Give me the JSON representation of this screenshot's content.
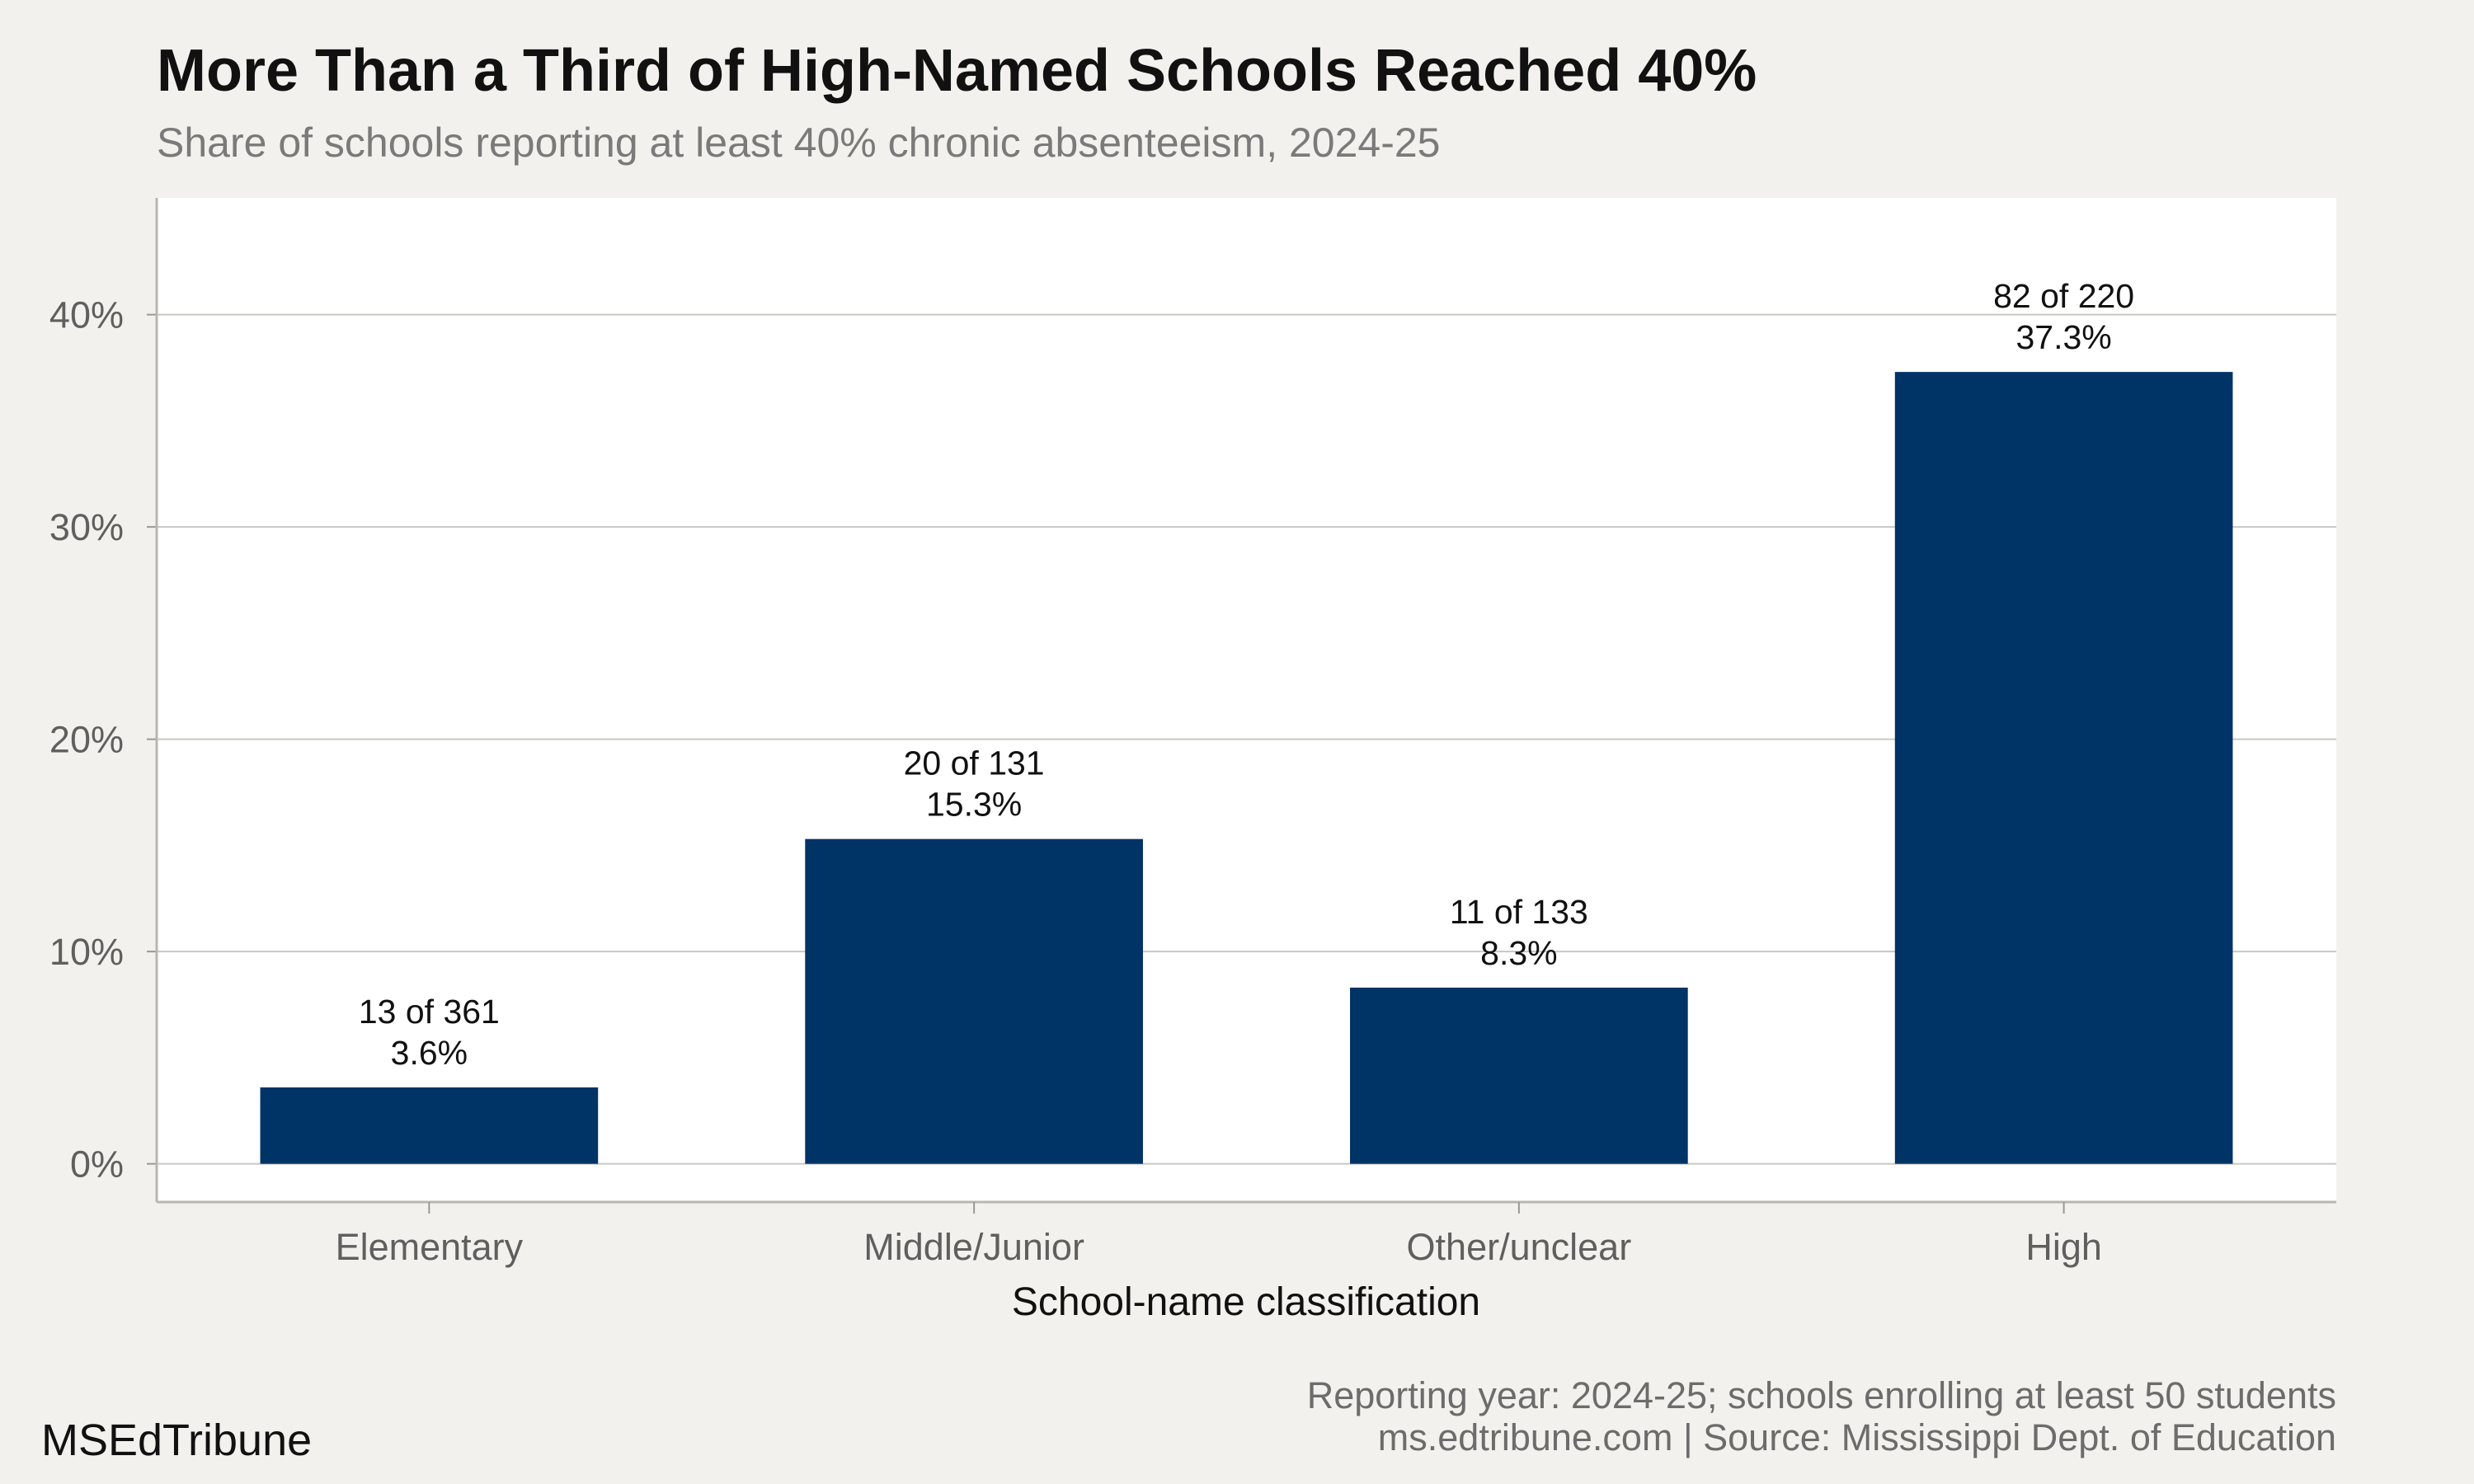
{
  "chart_data": {
    "type": "bar",
    "title": "More Than a Third of High-Named Schools Reached 40%",
    "subtitle": "Share of schools reporting at least 40% chronic absenteeism, 2024-25",
    "xlabel": "School-name classification",
    "ylabel": "",
    "categories": [
      "Elementary",
      "Middle/Junior",
      "Other/unclear",
      "High"
    ],
    "values": [
      3.6,
      15.3,
      8.3,
      37.3
    ],
    "count_labels": [
      "13 of 361",
      "20 of 131",
      "11 of 133",
      "82 of 220"
    ],
    "value_labels": [
      "3.6%",
      "15.3%",
      "8.3%",
      "37.3%"
    ],
    "ylim": [
      -1.8,
      45.5
    ],
    "yticks": [
      0,
      10,
      20,
      30,
      40
    ],
    "ytick_labels": [
      "0%",
      "10%",
      "20%",
      "30%",
      "40%"
    ],
    "grid": true,
    "legend": "none",
    "bar_color": "#003366",
    "caption_lines": [
      "Reporting year: 2024-25; schools enrolling at least 50 students",
      "ms.edtribune.com | Source: Mississippi Dept. of Education"
    ],
    "brand": "MSEdTribune"
  }
}
